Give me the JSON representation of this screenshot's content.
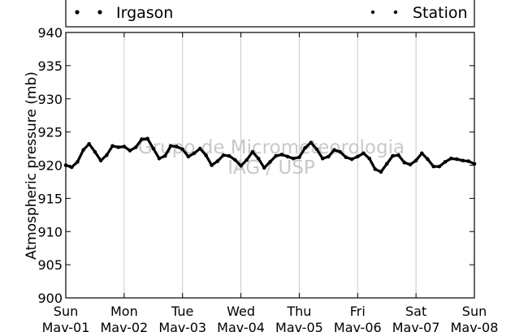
{
  "chart_data": {
    "type": "scatter",
    "title": "",
    "ylabel": "Atmospheric pressure (mb)",
    "xlabel": "",
    "ylim": [
      900,
      940
    ],
    "yticks": [
      900,
      905,
      910,
      915,
      920,
      925,
      930,
      935,
      940
    ],
    "xlim": [
      0,
      7
    ],
    "xticks": [
      {
        "day": "Sun",
        "date": "Mav-01"
      },
      {
        "day": "Mon",
        "date": "Mav-02"
      },
      {
        "day": "Tue",
        "date": "Mav-03"
      },
      {
        "day": "Wed",
        "date": "Mav-04"
      },
      {
        "day": "Thu",
        "date": "Mav-05"
      },
      {
        "day": "Fri",
        "date": "Mav-06"
      },
      {
        "day": "Sat",
        "date": "Mav-07"
      },
      {
        "day": "Sun",
        "date": "Mav-08"
      }
    ],
    "grid": "vertical",
    "legend_position": "top",
    "watermark": [
      "Grupo de Micrometeorologia",
      "IAG / USP"
    ],
    "series": [
      {
        "name": "Irgason",
        "color": "#000000",
        "points": [
          [
            0.0,
            920.0
          ],
          [
            0.1,
            919.7
          ],
          [
            0.2,
            920.5
          ],
          [
            0.3,
            922.3
          ],
          [
            0.4,
            923.2
          ],
          [
            0.5,
            922.0
          ],
          [
            0.6,
            920.7
          ],
          [
            0.7,
            921.5
          ],
          [
            0.8,
            922.9
          ],
          [
            0.9,
            922.7
          ],
          [
            1.0,
            922.8
          ],
          [
            1.1,
            922.2
          ],
          [
            1.2,
            922.7
          ],
          [
            1.3,
            923.9
          ],
          [
            1.4,
            924.0
          ],
          [
            1.5,
            922.5
          ],
          [
            1.6,
            921.0
          ],
          [
            1.7,
            921.4
          ],
          [
            1.8,
            922.9
          ],
          [
            1.9,
            922.8
          ],
          [
            2.0,
            922.4
          ],
          [
            2.1,
            921.3
          ],
          [
            2.2,
            921.8
          ],
          [
            2.3,
            922.5
          ],
          [
            2.4,
            921.5
          ],
          [
            2.5,
            920.0
          ],
          [
            2.6,
            920.6
          ],
          [
            2.7,
            921.5
          ],
          [
            2.8,
            921.4
          ],
          [
            2.9,
            920.8
          ],
          [
            3.0,
            919.9
          ],
          [
            3.1,
            920.8
          ],
          [
            3.2,
            922.0
          ],
          [
            3.3,
            921.0
          ],
          [
            3.4,
            919.6
          ],
          [
            3.5,
            920.5
          ],
          [
            3.6,
            921.4
          ],
          [
            3.7,
            921.6
          ],
          [
            3.8,
            921.3
          ],
          [
            3.9,
            921.0
          ],
          [
            4.0,
            921.2
          ],
          [
            4.1,
            922.6
          ],
          [
            4.2,
            923.4
          ],
          [
            4.3,
            922.4
          ],
          [
            4.4,
            921.0
          ],
          [
            4.5,
            921.3
          ],
          [
            4.6,
            922.3
          ],
          [
            4.7,
            922.0
          ],
          [
            4.8,
            921.2
          ],
          [
            4.9,
            920.9
          ],
          [
            5.0,
            921.3
          ],
          [
            5.1,
            921.8
          ],
          [
            5.2,
            921.0
          ],
          [
            5.3,
            919.4
          ],
          [
            5.4,
            919.0
          ],
          [
            5.5,
            920.2
          ],
          [
            5.6,
            921.4
          ],
          [
            5.7,
            921.5
          ],
          [
            5.8,
            920.4
          ],
          [
            5.9,
            920.1
          ],
          [
            6.0,
            920.7
          ],
          [
            6.1,
            921.8
          ],
          [
            6.2,
            920.9
          ],
          [
            6.3,
            919.8
          ],
          [
            6.4,
            919.8
          ],
          [
            6.5,
            920.5
          ],
          [
            6.6,
            921.0
          ],
          [
            6.7,
            920.9
          ],
          [
            6.8,
            920.7
          ],
          [
            6.9,
            920.6
          ],
          [
            7.0,
            920.2
          ]
        ]
      },
      {
        "name": "Station",
        "color": "#ff0000",
        "points": []
      }
    ]
  }
}
